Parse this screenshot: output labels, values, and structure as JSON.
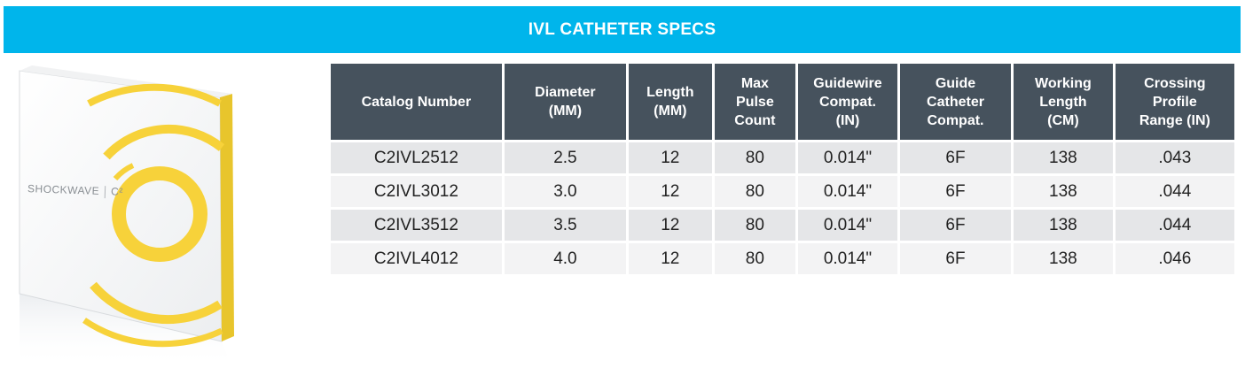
{
  "banner": {
    "title": "IVL CATHETER SPECS"
  },
  "product": {
    "brand": "SHOCKWAVE",
    "model": "C²"
  },
  "table": {
    "headers": [
      "Catalog Number",
      "Diameter\n(MM)",
      "Length\n(MM)",
      "Max\nPulse\nCount",
      "Guidewire\nCompat.\n(IN)",
      "Guide\nCatheter\nCompat.",
      "Working\nLength\n(CM)",
      "Crossing\nProfile\nRange (IN)"
    ],
    "rows": [
      [
        "C2IVL2512",
        "2.5",
        "12",
        "80",
        "0.014\"",
        "6F",
        "138",
        ".043"
      ],
      [
        "C2IVL3012",
        "3.0",
        "12",
        "80",
        "0.014\"",
        "6F",
        "138",
        ".044"
      ],
      [
        "C2IVL3512",
        "3.5",
        "12",
        "80",
        "0.014\"",
        "6F",
        "138",
        ".044"
      ],
      [
        "C2IVL4012",
        "4.0",
        "12",
        "80",
        "0.014\"",
        "6F",
        "138",
        ".046"
      ]
    ]
  },
  "colors": {
    "banner": "#00b5eb",
    "header": "#46525d",
    "row_odd": "#e5e6e8",
    "row_even": "#f3f3f4",
    "ring": "#f7d23a"
  }
}
